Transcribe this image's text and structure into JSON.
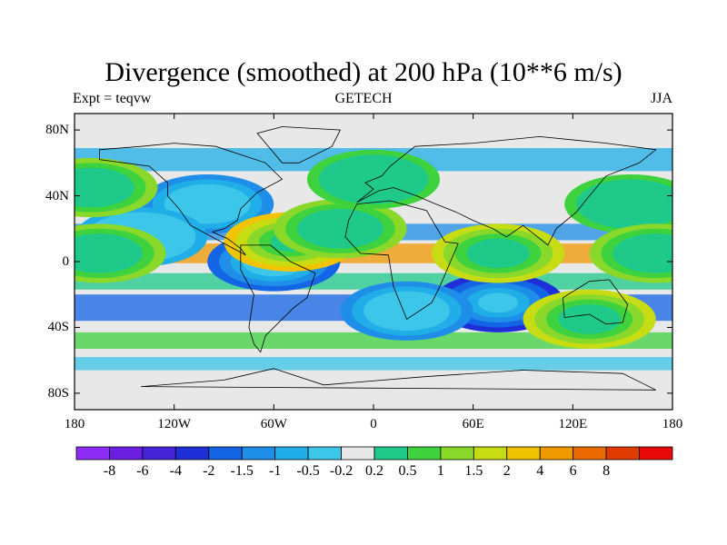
{
  "chart_data": {
    "type": "heatmap",
    "title": "Divergence (smoothed) at 200 hPa (10**6 m/s)",
    "subtitle_left": "Expt = teqvw",
    "subtitle_center": "GETECH",
    "subtitle_right": "JJA",
    "x_range": [
      -180,
      180
    ],
    "y_range": [
      -90,
      90
    ],
    "x_ticks": [
      {
        "value": -180,
        "label": "180"
      },
      {
        "value": -120,
        "label": "120W"
      },
      {
        "value": -60,
        "label": "60W"
      },
      {
        "value": 0,
        "label": "0"
      },
      {
        "value": 60,
        "label": "60E"
      },
      {
        "value": 120,
        "label": "120E"
      },
      {
        "value": 180,
        "label": "180"
      }
    ],
    "y_ticks": [
      {
        "value": 80,
        "label": "80N"
      },
      {
        "value": 40,
        "label": "40N"
      },
      {
        "value": 0,
        "label": "0"
      },
      {
        "value": -40,
        "label": "40S"
      },
      {
        "value": -80,
        "label": "80S"
      }
    ],
    "colorbar": {
      "colors": [
        "#8d2cf4",
        "#6a1fe0",
        "#4424d6",
        "#1e2fd8",
        "#1464e6",
        "#1f8ee8",
        "#20aee8",
        "#3cc6ea",
        "#e8e8e8",
        "#1ec98a",
        "#3fd23f",
        "#8ad82a",
        "#c8dc14",
        "#f0c400",
        "#f09a00",
        "#ea6a00",
        "#e03a00",
        "#e80a0a"
      ],
      "labels": [
        "-8",
        "-6",
        "-4",
        "-2",
        "-1.5",
        "-1",
        "-0.5",
        "-0.2",
        "0.2",
        "0.5",
        "1",
        "1.5",
        "2",
        "4",
        "6",
        "8"
      ]
    },
    "features": [
      {
        "lon": -100,
        "lat": 35,
        "level": -3
      },
      {
        "lon": -60,
        "lat": 0,
        "level": -4
      },
      {
        "lon": -140,
        "lat": 15,
        "level": -2
      },
      {
        "lon": 75,
        "lat": -25,
        "level": -5
      },
      {
        "lon": 20,
        "lat": -30,
        "level": -3
      },
      {
        "lon": -50,
        "lat": 12,
        "level": 5
      },
      {
        "lon": 75,
        "lat": 5,
        "level": 4
      },
      {
        "lon": -20,
        "lat": 20,
        "level": 3
      },
      {
        "lon": 130,
        "lat": -35,
        "level": 4
      },
      {
        "lon": -170,
        "lat": 45,
        "level": 3
      },
      {
        "lon": 155,
        "lat": 35,
        "level": 2
      },
      {
        "lon": 170,
        "lat": 5,
        "level": 3
      },
      {
        "lon": -165,
        "lat": 5,
        "level": 3
      },
      {
        "lon": 0,
        "lat": 50,
        "level": 2
      }
    ]
  }
}
